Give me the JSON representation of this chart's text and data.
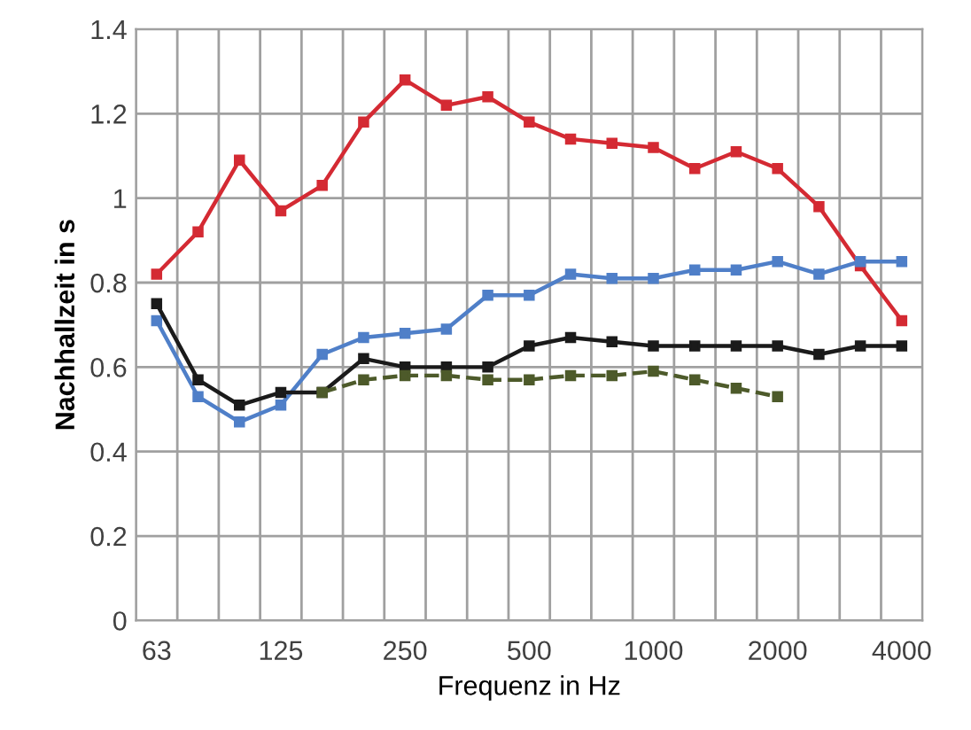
{
  "chart_data": {
    "type": "line",
    "xlabel": "Frequenz in Hz",
    "ylabel": "Nachhallzeit in s",
    "categories": [
      "63",
      null,
      null,
      "125",
      null,
      null,
      "250",
      null,
      null,
      "500",
      null,
      null,
      "1000",
      null,
      null,
      "2000",
      null,
      null,
      "4000"
    ],
    "series": [
      {
        "color": "#d42a33",
        "line_style": "solid",
        "values": [
          0.82,
          0.92,
          1.09,
          0.97,
          1.03,
          1.18,
          1.28,
          1.22,
          1.24,
          1.18,
          1.14,
          1.13,
          1.12,
          1.07,
          1.11,
          1.07,
          0.98,
          0.84,
          0.71
        ]
      },
      {
        "color": "#4f7fc8",
        "line_style": "solid",
        "values": [
          0.71,
          0.53,
          0.47,
          0.51,
          0.63,
          0.67,
          0.68,
          0.69,
          0.77,
          0.77,
          0.82,
          0.81,
          0.81,
          0.83,
          0.83,
          0.85,
          0.82,
          0.85,
          0.85
        ]
      },
      {
        "color": "#1a1a1a",
        "line_style": "solid",
        "values": [
          0.75,
          0.57,
          0.51,
          0.54,
          0.54,
          0.62,
          0.6,
          0.6,
          0.6,
          0.65,
          0.67,
          0.66,
          0.65,
          0.65,
          0.65,
          0.65,
          0.63,
          0.65,
          0.65
        ]
      },
      {
        "color": "#4d5a2a",
        "line_style": "dashed",
        "values": [
          null,
          null,
          null,
          null,
          0.54,
          0.57,
          0.58,
          0.58,
          0.57,
          0.57,
          0.58,
          0.58,
          0.59,
          0.57,
          0.55,
          0.53,
          null,
          null,
          null
        ]
      }
    ],
    "ylim": [
      0,
      1.4
    ],
    "yticks": [
      0,
      0.2,
      0.4,
      0.6,
      0.8,
      1,
      1.2,
      1.4
    ],
    "grid": true,
    "marker": "square"
  }
}
